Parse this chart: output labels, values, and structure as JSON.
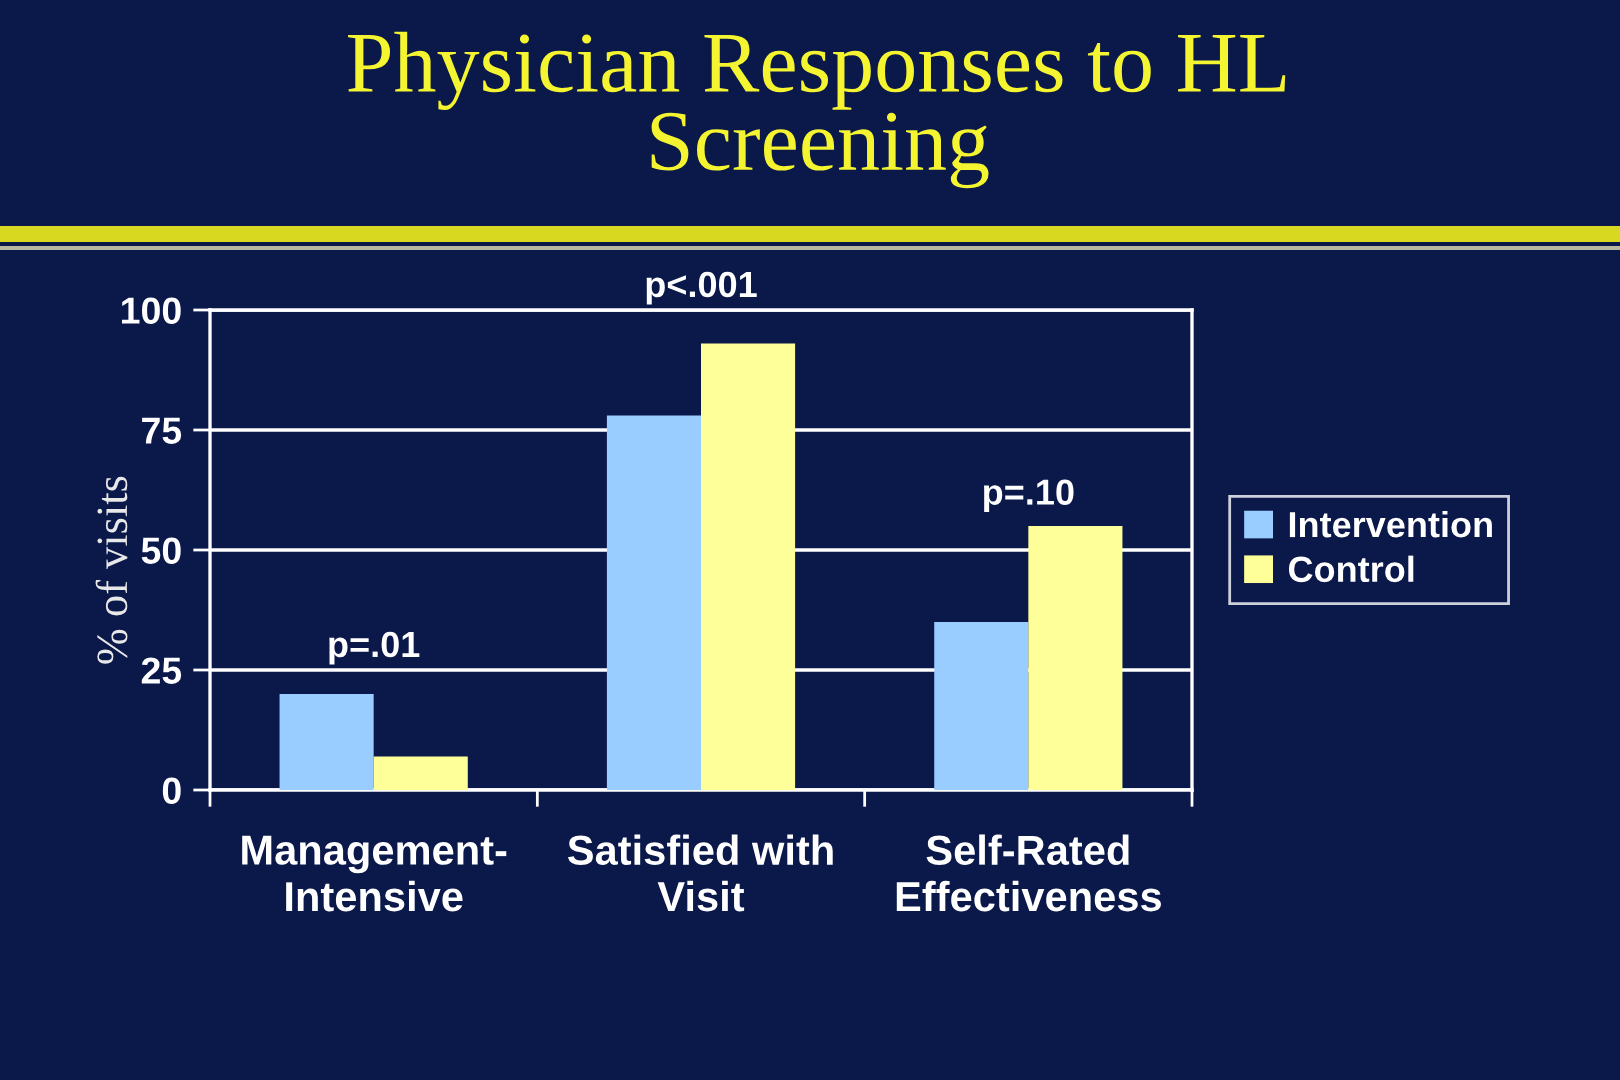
{
  "chart_data": {
    "type": "bar",
    "title": "Physician Responses to HL\nScreening",
    "ylabel": "% of visits",
    "categories": [
      "Management-\nIntensive",
      "Satisfied with\nVisit",
      "Self-Rated\nEffectiveness"
    ],
    "series": [
      {
        "name": "Intervention",
        "color": "#99ccff",
        "values": [
          20,
          78,
          35
        ]
      },
      {
        "name": "Control",
        "color": "#ffff99",
        "values": [
          7,
          93,
          55
        ]
      }
    ],
    "ylim": [
      0,
      100
    ],
    "yticks": [
      0,
      25,
      50,
      75,
      100
    ],
    "grid": "y",
    "legend": "right",
    "annotations": [
      "p=.01",
      "p<.001",
      "p=.10"
    ]
  }
}
